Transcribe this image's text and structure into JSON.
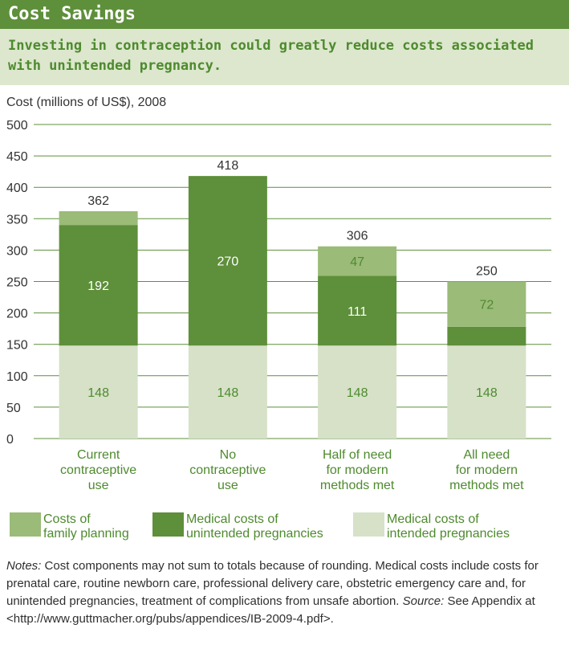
{
  "header": {
    "title": "Cost Savings",
    "subtitle": "Investing in contraception could greatly reduce costs associated with unintended pregnancy."
  },
  "notes": {
    "notes_label": "Notes:",
    "notes_text": " Cost components may not sum to totals because of rounding. Medical costs include costs for prenatal care, routine newborn care, professional delivery care, obstetric emergency care and, for unintended pregnancies, treatment of complications from unsafe abortion. ",
    "source_label": "Source:",
    "source_text": " See Appendix at <http://www.guttmacher.org/pubs/appendices/IB-2009-4.pdf>."
  },
  "chart_data": {
    "type": "bar",
    "stacked": true,
    "ylabel": "Cost (millions of US$), 2008",
    "ylim": [
      0,
      500
    ],
    "yticks": [
      0,
      50,
      100,
      150,
      200,
      250,
      300,
      350,
      400,
      450,
      500
    ],
    "grid": true,
    "legend_position": "bottom",
    "categories": [
      [
        "Current",
        "contraceptive",
        "use"
      ],
      [
        "No",
        "contraceptive",
        "use"
      ],
      [
        "Half of need",
        "for modern",
        "methods met"
      ],
      [
        "All need",
        "for modern",
        "methods met"
      ]
    ],
    "series": [
      {
        "name": "Medical costs of intended pregnancies",
        "legend_lines": [
          "Medical costs of",
          "intended pregnancies"
        ],
        "color": "#d6e1c8",
        "values": [
          148,
          148,
          148,
          148
        ],
        "labels": [
          "148",
          "148",
          "148",
          "148"
        ],
        "label_color": "#4e8a2e"
      },
      {
        "name": "Medical costs of unintended pregnancies",
        "legend_lines": [
          "Medical costs of",
          "unintended pregnancies"
        ],
        "color": "#5e8f3a",
        "values": [
          192,
          270,
          111,
          30
        ],
        "labels": [
          "192",
          "270",
          "111",
          ""
        ],
        "label_color": "#ffffff"
      },
      {
        "name": "Costs of family planning",
        "legend_lines": [
          "Costs of",
          "family planning"
        ],
        "color": "#9bbb78",
        "values": [
          22,
          0,
          47,
          72
        ],
        "labels": [
          "",
          "",
          "47",
          "72"
        ],
        "label_color": "#4e8a2e"
      }
    ],
    "totals": [
      362,
      418,
      306,
      250
    ],
    "legend_order": [
      2,
      1,
      0
    ]
  }
}
